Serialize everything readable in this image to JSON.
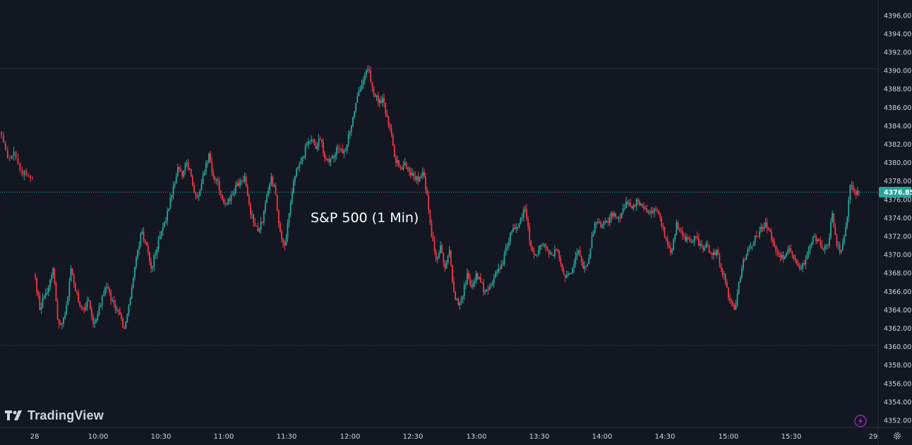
{
  "brand": {
    "name": "TradingView",
    "icon": "tradingview-logo-icon"
  },
  "chart_data": {
    "type": "candlestick",
    "title": "S&P 500 (1 Min)",
    "ylim": [
      4351,
      4398
    ],
    "y_ticks": [
      "4352.00",
      "4354.00",
      "4356.00",
      "4358.00",
      "4360.00",
      "4362.00",
      "4364.00",
      "4366.00",
      "4368.00",
      "4370.00",
      "4372.00",
      "4374.00",
      "4376.00",
      "4378.00",
      "4380.00",
      "4382.00",
      "4384.00",
      "4386.00",
      "4388.00",
      "4390.00",
      "4392.00",
      "4394.00",
      "4396.00"
    ],
    "x_ticks": [
      "28",
      "10:00",
      "10:30",
      "11:00",
      "11:30",
      "12:00",
      "12:30",
      "13:00",
      "13:30",
      "14:00",
      "14:30",
      "15:00",
      "15:30",
      "29"
    ],
    "last_price": 4376.85,
    "last_price_label": "4376.85",
    "reference_lines": [
      4390.2,
      4360.2
    ],
    "colors": {
      "up": "#26a69a",
      "down": "#f23645",
      "background": "#131722",
      "text": "#d1d4dc",
      "grid_dots": "#4a4e59",
      "last_price": "#26a69a",
      "accent": "#9c27b0"
    },
    "segments": [
      {
        "start": "prev-close",
        "points": [
          4383.0,
          4380.5,
          4381.2,
          4379.2,
          4378.6,
          4378.3
        ]
      },
      {
        "start": "09:30",
        "points": [
          4367.5,
          4364.0,
          4365.5,
          4366.5,
          4368.5,
          4363.0,
          4362.5,
          4364.5,
          4368.5,
          4366.0,
          4364.5,
          4364.0,
          4365.0,
          4362.5,
          4363.5,
          4365.5,
          4366.5,
          4365.0,
          4364.0,
          4363.5,
          4362.0,
          4364.5,
          4367.5,
          4370.5,
          4372.5,
          4371.0,
          4368.5,
          4370.0,
          4372.0,
          4373.5,
          4375.0,
          4377.5,
          4379.5,
          4378.5,
          4380.0,
          4378.5,
          4376.5,
          4377.0,
          4379.0,
          4381.0,
          4378.5,
          4378.0,
          4376.0,
          4375.5,
          4376.5,
          4377.5,
          4378.0,
          4378.5,
          4375.5,
          4373.5,
          4372.5,
          4373.5,
          4376.5,
          4378.5,
          4376.5,
          4372.5,
          4371.0,
          4374.5,
          4378.0,
          4379.5,
          4380.5,
          4382.0,
          4382.5,
          4381.5,
          4382.5,
          4380.5,
          4380.0,
          4380.5,
          4381.5,
          4381.0,
          4382.0,
          4384.0,
          4386.5,
          4388.0,
          4389.5,
          4390.0,
          4387.5,
          4386.5,
          4387.0,
          4385.0,
          4383.0,
          4380.0,
          4379.5,
          4380.0,
          4379.0,
          4378.5,
          4378.0,
          4379.0,
          4376.5,
          4372.0,
          4369.5,
          4371.0,
          4368.5,
          4370.5,
          4366.0,
          4364.5,
          4365.5,
          4368.0,
          4366.5,
          4368.0,
          4367.0,
          4366.0,
          4366.5,
          4367.5,
          4368.5,
          4369.0,
          4371.0,
          4372.5,
          4373.0,
          4374.0,
          4375.0,
          4371.5,
          4370.0,
          4370.5,
          4371.0,
          4370.5,
          4370.0,
          4370.5,
          4369.0,
          4367.5,
          4368.0,
          4369.0,
          4370.5,
          4368.5,
          4369.0,
          4372.0,
          4373.5,
          4373.0,
          4373.5,
          4374.0,
          4374.5,
          4374.0,
          4375.0,
          4375.5,
          4375.0,
          4376.0,
          4375.5,
          4375.0,
          4374.5,
          4375.0,
          4374.5,
          4373.0,
          4371.0,
          4370.5,
          4373.5,
          4372.5,
          4371.5,
          4371.5,
          4372.0,
          4371.0,
          4370.5,
          4371.0,
          4370.0,
          4370.5,
          4368.5,
          4367.0,
          4365.0,
          4364.0,
          4367.0,
          4369.5,
          4370.5,
          4371.0,
          4372.0,
          4373.0,
          4373.5,
          4372.5,
          4371.0,
          4370.0,
          4369.5,
          4370.5,
          4370.0,
          4369.0,
          4368.5,
          4369.5,
          4371.0,
          4372.0,
          4371.5,
          4370.5,
          4371.0,
          4374.5,
          4371.0,
          4370.5,
          4373.0,
          4377.5,
          4377.0,
          4376.85
        ]
      }
    ]
  }
}
